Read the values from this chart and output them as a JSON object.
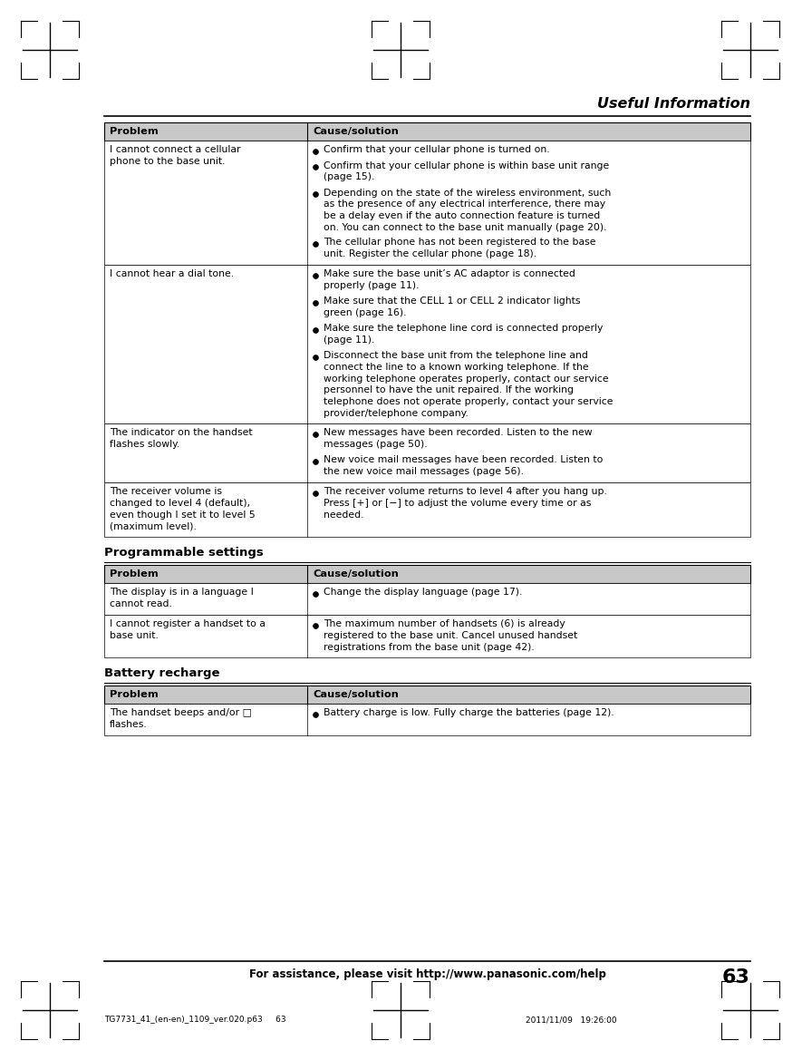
{
  "page_title": "Useful Information",
  "page_number": "63",
  "footer_text": "For assistance, please visit http://www.panasonic.com/help",
  "footer_left": "TG7731_41_(en-en)_1109_ver.020.p63     63",
  "footer_right": "2011/11/09   19:26:00",
  "table_header": [
    "Problem",
    "Cause/solution"
  ],
  "header_bg": "#c8c8c8",
  "tables": [
    {
      "section_title": null,
      "rows": [
        {
          "col1": "I cannot connect a cellular\nphone to the base unit.",
          "col2_bullets": [
            "Confirm that your cellular phone is turned on.",
            "Confirm that your cellular phone is within base unit range\n(page 15).",
            "Depending on the state of the wireless environment, such\nas the presence of any electrical interference, there may\nbe a delay even if the auto connection feature is turned\non. You can connect to the base unit manually (page 20).",
            "The cellular phone has not been registered to the base\nunit. Register the cellular phone (page 18)."
          ]
        },
        {
          "col1": "I cannot hear a dial tone.",
          "col2_bullets": [
            "Make sure the base unit’s AC adaptor is connected\nproperly (page 11).",
            "Make sure that the CELL 1 or CELL 2 indicator lights\ngreen (page 16).",
            "Make sure the telephone line cord is connected properly\n(page 11).",
            "Disconnect the base unit from the telephone line and\nconnect the line to a known working telephone. If the\nworking telephone operates properly, contact our service\npersonnel to have the unit repaired. If the working\ntelephone does not operate properly, contact your service\nprovider/telephone company."
          ]
        },
        {
          "col1": "The indicator on the handset\nflashes slowly.",
          "col2_bullets": [
            "New messages have been recorded. Listen to the new\nmessages (page 50).",
            "New voice mail messages have been recorded. Listen to\nthe new voice mail messages (page 56)."
          ]
        },
        {
          "col1": "The receiver volume is\nchanged to level 4 (default),\neven though I set it to level 5\n(maximum level).",
          "col2_bullets": [
            "The receiver volume returns to level 4 after you hang up.\nPress [+] or [−] to adjust the volume every time or as\nneeded."
          ]
        }
      ]
    },
    {
      "section_title": "Programmable settings",
      "rows": [
        {
          "col1": "The display is in a language I\ncannot read.",
          "col2_bullets": [
            "Change the display language (page 17)."
          ]
        },
        {
          "col1": "I cannot register a handset to a\nbase unit.",
          "col2_bullets": [
            "The maximum number of handsets (6) is already\nregistered to the base unit. Cancel unused handset\nregistrations from the base unit (page 42)."
          ]
        }
      ]
    },
    {
      "section_title": "Battery recharge",
      "rows": [
        {
          "col1": "The handset beeps and/or □\nflashes.",
          "col2_bullets": [
            "Battery charge is low. Fully charge the batteries (page 12)."
          ]
        }
      ]
    }
  ]
}
